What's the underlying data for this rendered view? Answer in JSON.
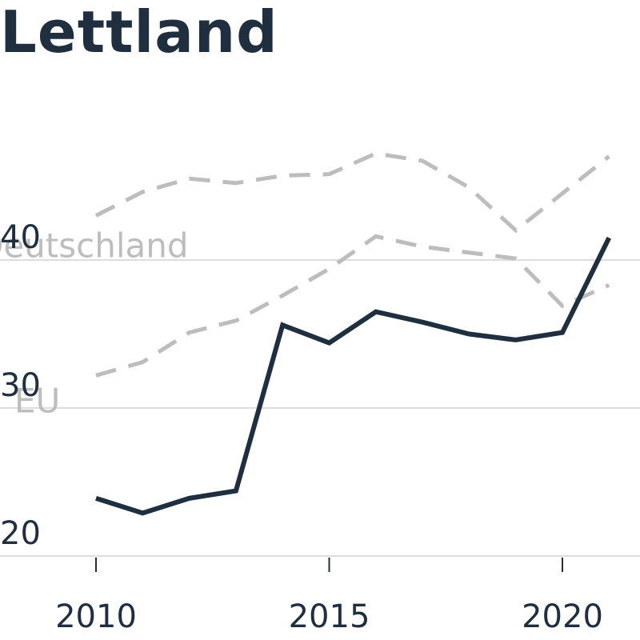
{
  "chart_data": {
    "type": "line",
    "title": "Lettland",
    "xlabel": "",
    "ylabel": "",
    "x": [
      2010,
      2011,
      2012,
      2013,
      2014,
      2015,
      2016,
      2017,
      2018,
      2019,
      2020,
      2021
    ],
    "xlim": [
      2010,
      2021
    ],
    "ylim": [
      19,
      47
    ],
    "x_ticks": [
      "2010",
      "2015",
      "2020"
    ],
    "y_ticks": [
      "20",
      "30",
      "40"
    ],
    "grid": "horizontal",
    "series": [
      {
        "name": "",
        "style": "solid",
        "color": "#1f2f3f",
        "values": [
          23.9,
          22.9,
          23.9,
          24.4,
          35.6,
          34.4,
          36.5,
          35.8,
          35.0,
          34.6,
          35.1,
          41.5
        ]
      },
      {
        "name": "Deutschland",
        "style": "dashed",
        "color": "#bdbdbd",
        "values": [
          43.0,
          44.6,
          45.5,
          45.2,
          45.7,
          45.8,
          47.2,
          46.7,
          44.9,
          42.0,
          44.5,
          47.0
        ]
      },
      {
        "name": "EU",
        "style": "dashed",
        "color": "#bdbdbd",
        "values": [
          32.2,
          33.1,
          35.1,
          35.9,
          37.6,
          39.4,
          41.6,
          40.9,
          40.5,
          40.1,
          36.9,
          38.3
        ]
      }
    ]
  }
}
